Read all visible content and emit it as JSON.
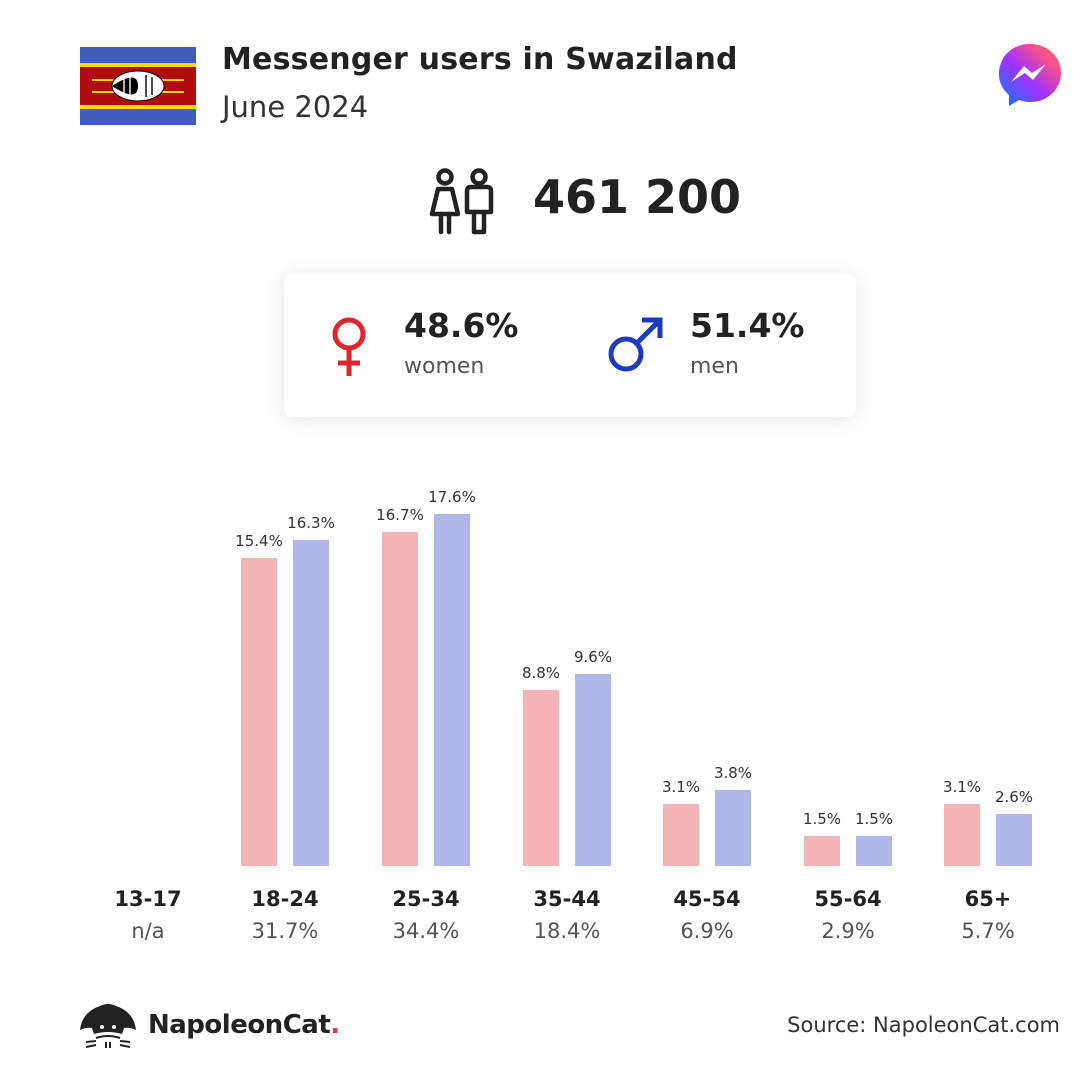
{
  "header": {
    "title": "Messenger users in Swaziland",
    "subtitle": "June 2024",
    "flag_icon": "swaziland-flag-icon",
    "app_icon": "messenger-logo-icon"
  },
  "total": {
    "value": "461 200",
    "icon": "people-icon"
  },
  "gender": {
    "women": {
      "pct": "48.6%",
      "label": "women",
      "color": "#e0252b",
      "icon": "female-symbol-icon"
    },
    "men": {
      "pct": "51.4%",
      "label": "men",
      "color": "#1a3bbf",
      "icon": "male-symbol-icon"
    }
  },
  "chart_data": {
    "type": "bar",
    "categories": [
      "13-17",
      "18-24",
      "25-34",
      "35-44",
      "45-54",
      "55-64",
      "65+"
    ],
    "category_totals": [
      "n/a",
      "31.7%",
      "34.4%",
      "18.4%",
      "6.9%",
      "2.9%",
      "5.7%"
    ],
    "series": [
      {
        "name": "women",
        "color": "#f4b3b5",
        "values": [
          null,
          15.4,
          16.7,
          8.8,
          3.1,
          1.5,
          3.1
        ],
        "labels": [
          "",
          "15.4%",
          "16.7%",
          "8.8%",
          "3.1%",
          "1.5%",
          "3.1%"
        ]
      },
      {
        "name": "men",
        "color": "#b0b8ea",
        "values": [
          null,
          16.3,
          17.6,
          9.6,
          3.8,
          1.5,
          2.6
        ],
        "labels": [
          "",
          "16.3%",
          "17.6%",
          "9.6%",
          "3.8%",
          "1.5%",
          "2.6%"
        ]
      }
    ],
    "grid": false
  },
  "footer": {
    "brand": "NapoleonCat",
    "brand_dot": ".",
    "brand_icon": "napoleoncat-logo-icon",
    "source": "Source: NapoleonCat.com"
  }
}
